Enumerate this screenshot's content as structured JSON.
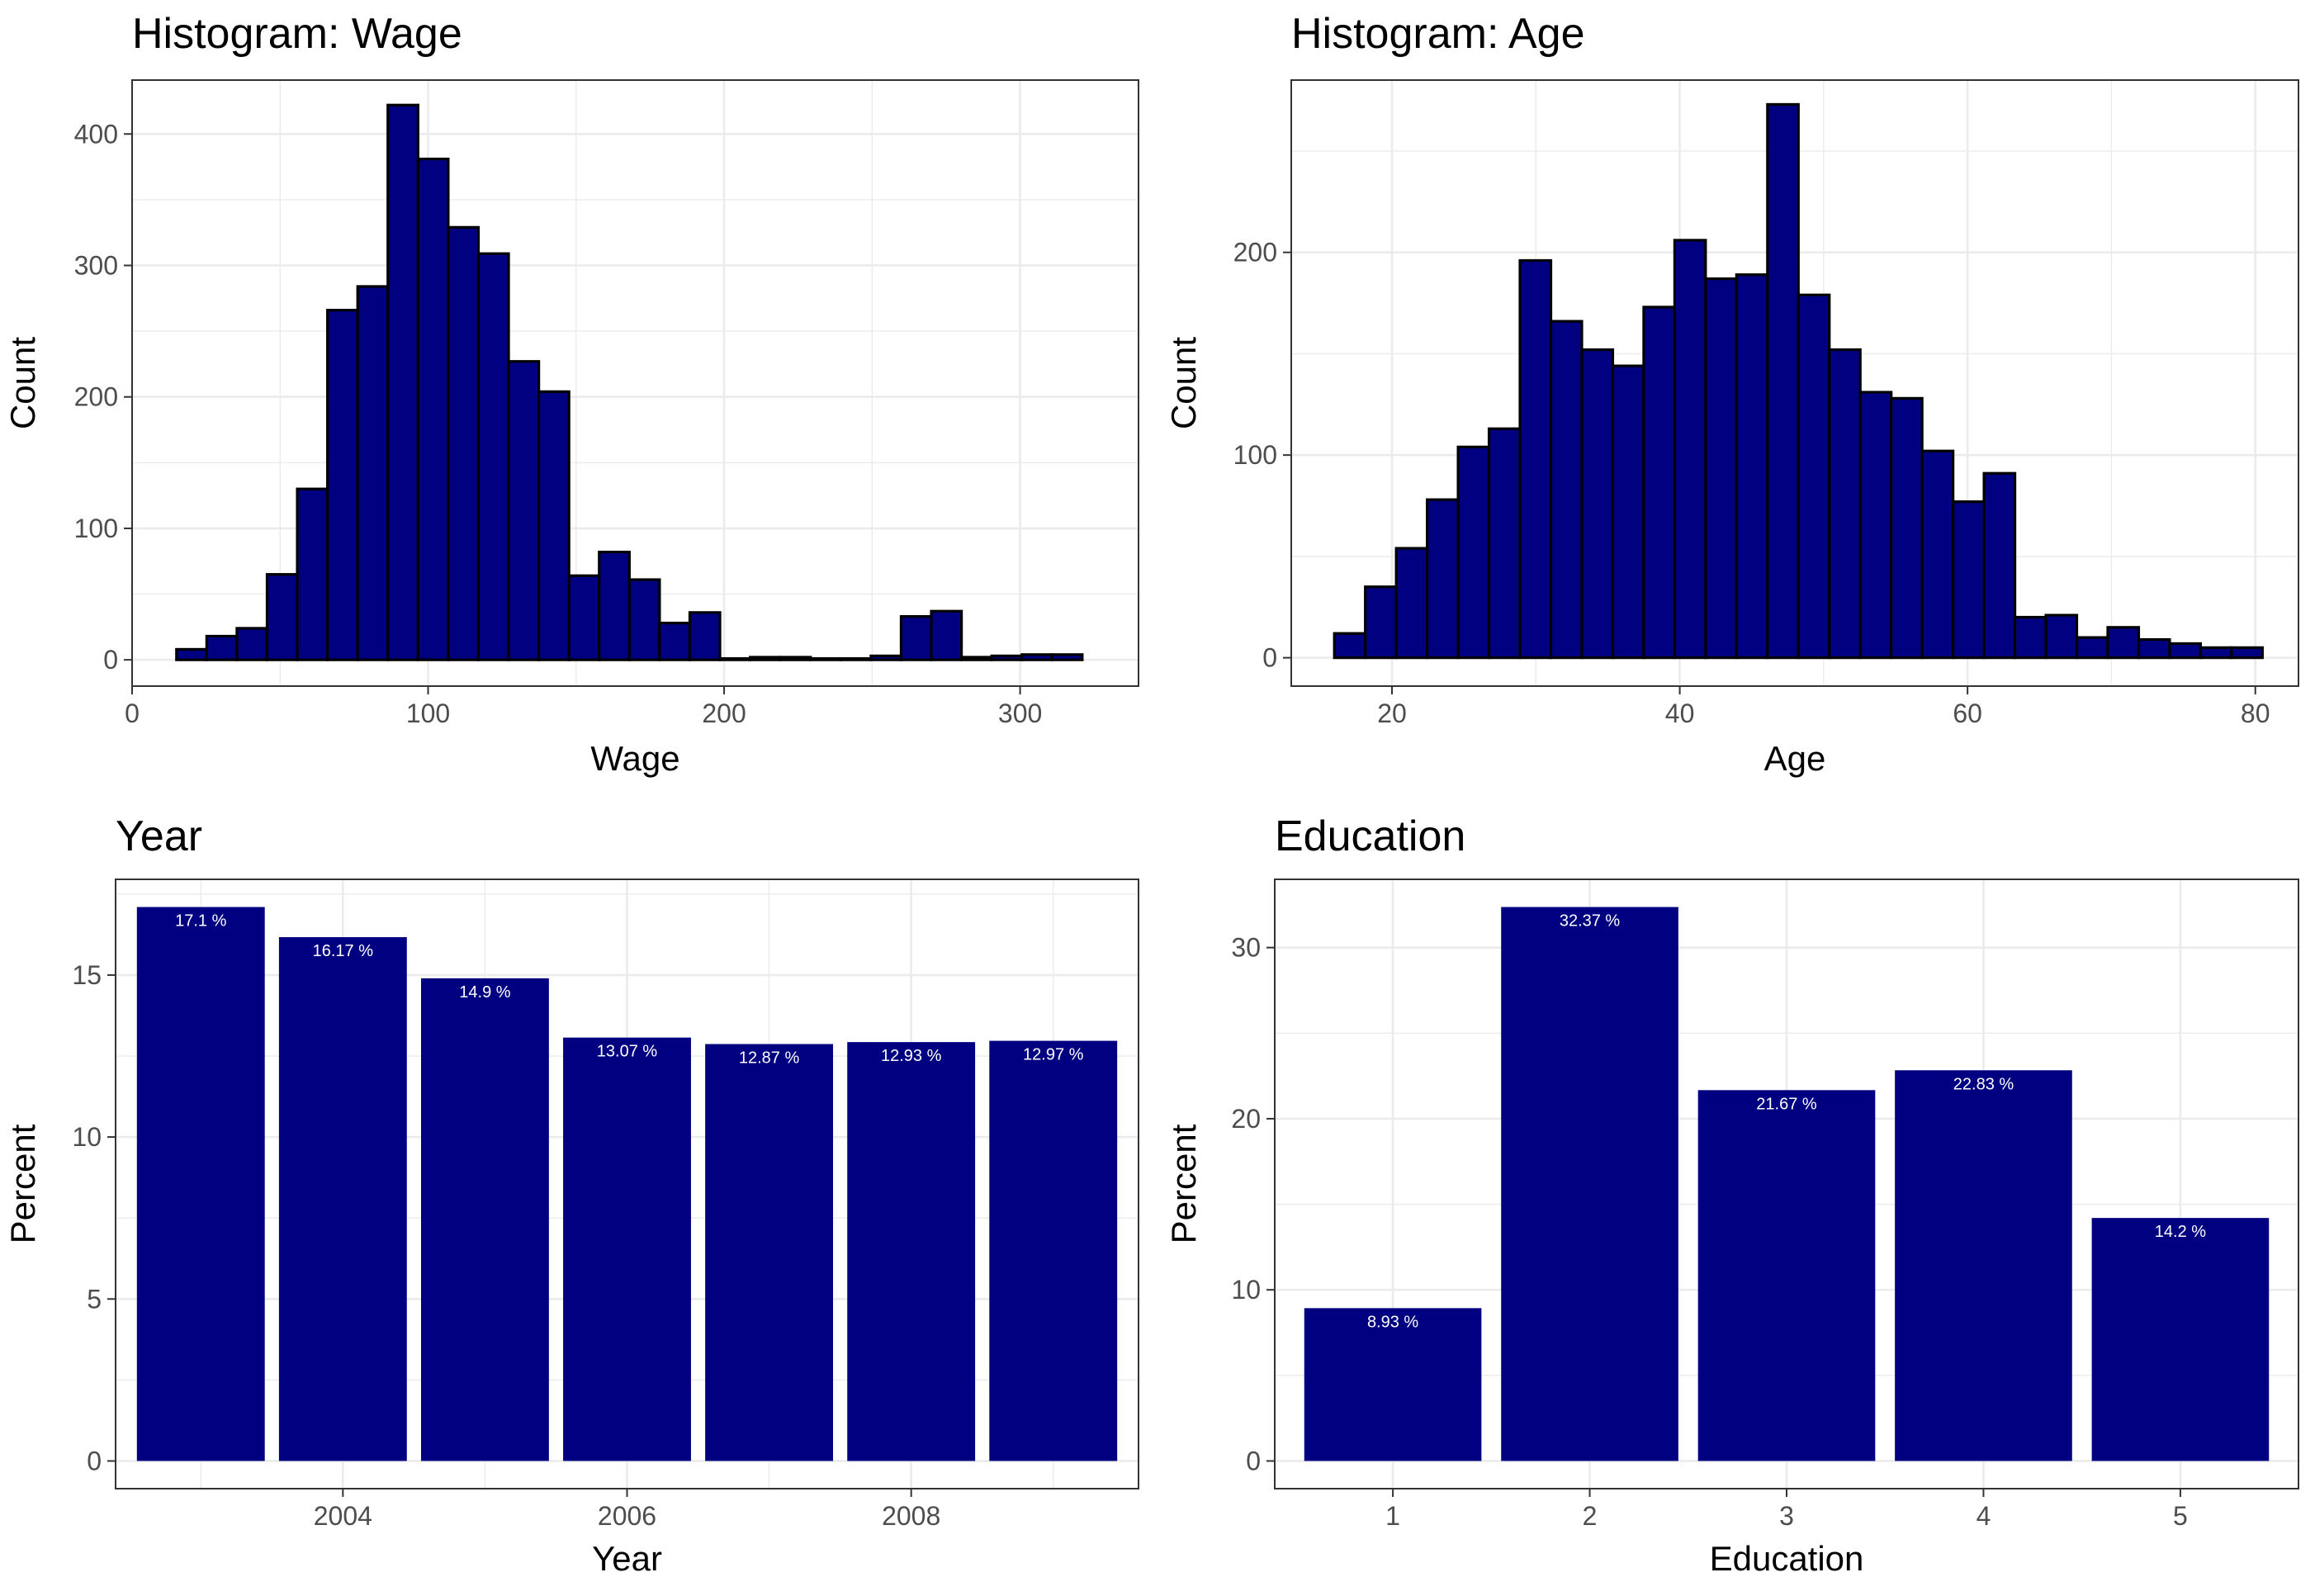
{
  "colors": {
    "bar_fill": "#000080",
    "bar_outline": "#000000",
    "grid": "#ebebeb",
    "panel_border": "#333333",
    "label_text": "#ffffff"
  },
  "chart_data": [
    {
      "type": "bar",
      "title": "Histogram: Wage",
      "xlabel": "Wage",
      "ylabel": "Count",
      "xlim": [
        0,
        340
      ],
      "ylim": [
        -20,
        441
      ],
      "xticks": [
        0,
        100,
        200,
        300
      ],
      "yticks": [
        0,
        100,
        200,
        300,
        400
      ],
      "bin_width": 10.2,
      "bin_centers": [
        20.1,
        30.3,
        40.5,
        50.7,
        60.9,
        71.1,
        81.3,
        91.5,
        101.7,
        111.9,
        122.1,
        132.3,
        142.5,
        152.7,
        162.9,
        173.1,
        183.3,
        193.5,
        203.7,
        213.9,
        224.1,
        234.3,
        244.5,
        254.7,
        264.9,
        275.1,
        285.3,
        295.5,
        305.7,
        315.9
      ],
      "values": [
        8,
        18,
        24,
        65,
        130,
        266,
        284,
        422,
        381,
        329,
        309,
        227,
        204,
        64,
        82,
        61,
        28,
        36,
        1,
        2,
        2,
        1,
        1,
        3,
        33,
        37,
        2,
        3,
        4,
        4
      ]
    },
    {
      "type": "bar",
      "title": "Histogram: Age",
      "xlabel": "Age",
      "ylabel": "Count",
      "xlim": [
        13.0,
        83.0
      ],
      "ylim": [
        -14,
        285
      ],
      "xticks": [
        20,
        40,
        60,
        80
      ],
      "yticks": [
        0,
        100,
        200
      ],
      "bin_width": 2.15,
      "bin_centers": [
        17.07,
        19.22,
        21.37,
        23.52,
        25.67,
        27.82,
        29.97,
        32.12,
        34.27,
        36.42,
        38.57,
        40.72,
        42.87,
        45.02,
        47.17,
        49.32,
        51.47,
        53.62,
        55.77,
        57.92,
        60.07,
        62.22,
        64.37,
        66.52,
        68.67,
        70.82,
        72.97,
        75.12,
        77.27,
        79.42
      ],
      "values": [
        12,
        35,
        54,
        78,
        104,
        113,
        196,
        166,
        152,
        144,
        173,
        206,
        187,
        189,
        273,
        179,
        152,
        131,
        128,
        102,
        77,
        91,
        20,
        21,
        10,
        15,
        9,
        7,
        5,
        5
      ]
    },
    {
      "type": "bar",
      "title": "Year",
      "xlabel": "Year",
      "ylabel": "Percent",
      "xlim": [
        2002.4,
        2009.6
      ],
      "ylim": [
        -0.855,
        17.955
      ],
      "xticks": [
        2004,
        2006,
        2008
      ],
      "yticks": [
        0,
        5,
        10,
        15
      ],
      "categories": [
        2003,
        2004,
        2005,
        2006,
        2007,
        2008,
        2009
      ],
      "values": [
        17.1,
        16.17,
        14.9,
        13.07,
        12.87,
        12.93,
        12.97
      ],
      "labels": [
        "17.1 %",
        "16.17 %",
        "14.9 %",
        "13.07 %",
        "12.87 %",
        "12.93 %",
        "12.97 %"
      ]
    },
    {
      "type": "bar",
      "title": "Education",
      "xlabel": "Education",
      "ylabel": "Percent",
      "xlim": [
        0.4,
        5.6
      ],
      "ylim": [
        -1.6185,
        33.9885
      ],
      "xticks": [
        1,
        2,
        3,
        4,
        5
      ],
      "yticks": [
        0,
        10,
        20,
        30
      ],
      "categories": [
        1,
        2,
        3,
        4,
        5
      ],
      "values": [
        8.93,
        32.37,
        21.67,
        22.83,
        14.2
      ],
      "labels": [
        "8.93 %",
        "32.37 %",
        "21.67 %",
        "22.83 %",
        "14.2 %"
      ]
    }
  ]
}
